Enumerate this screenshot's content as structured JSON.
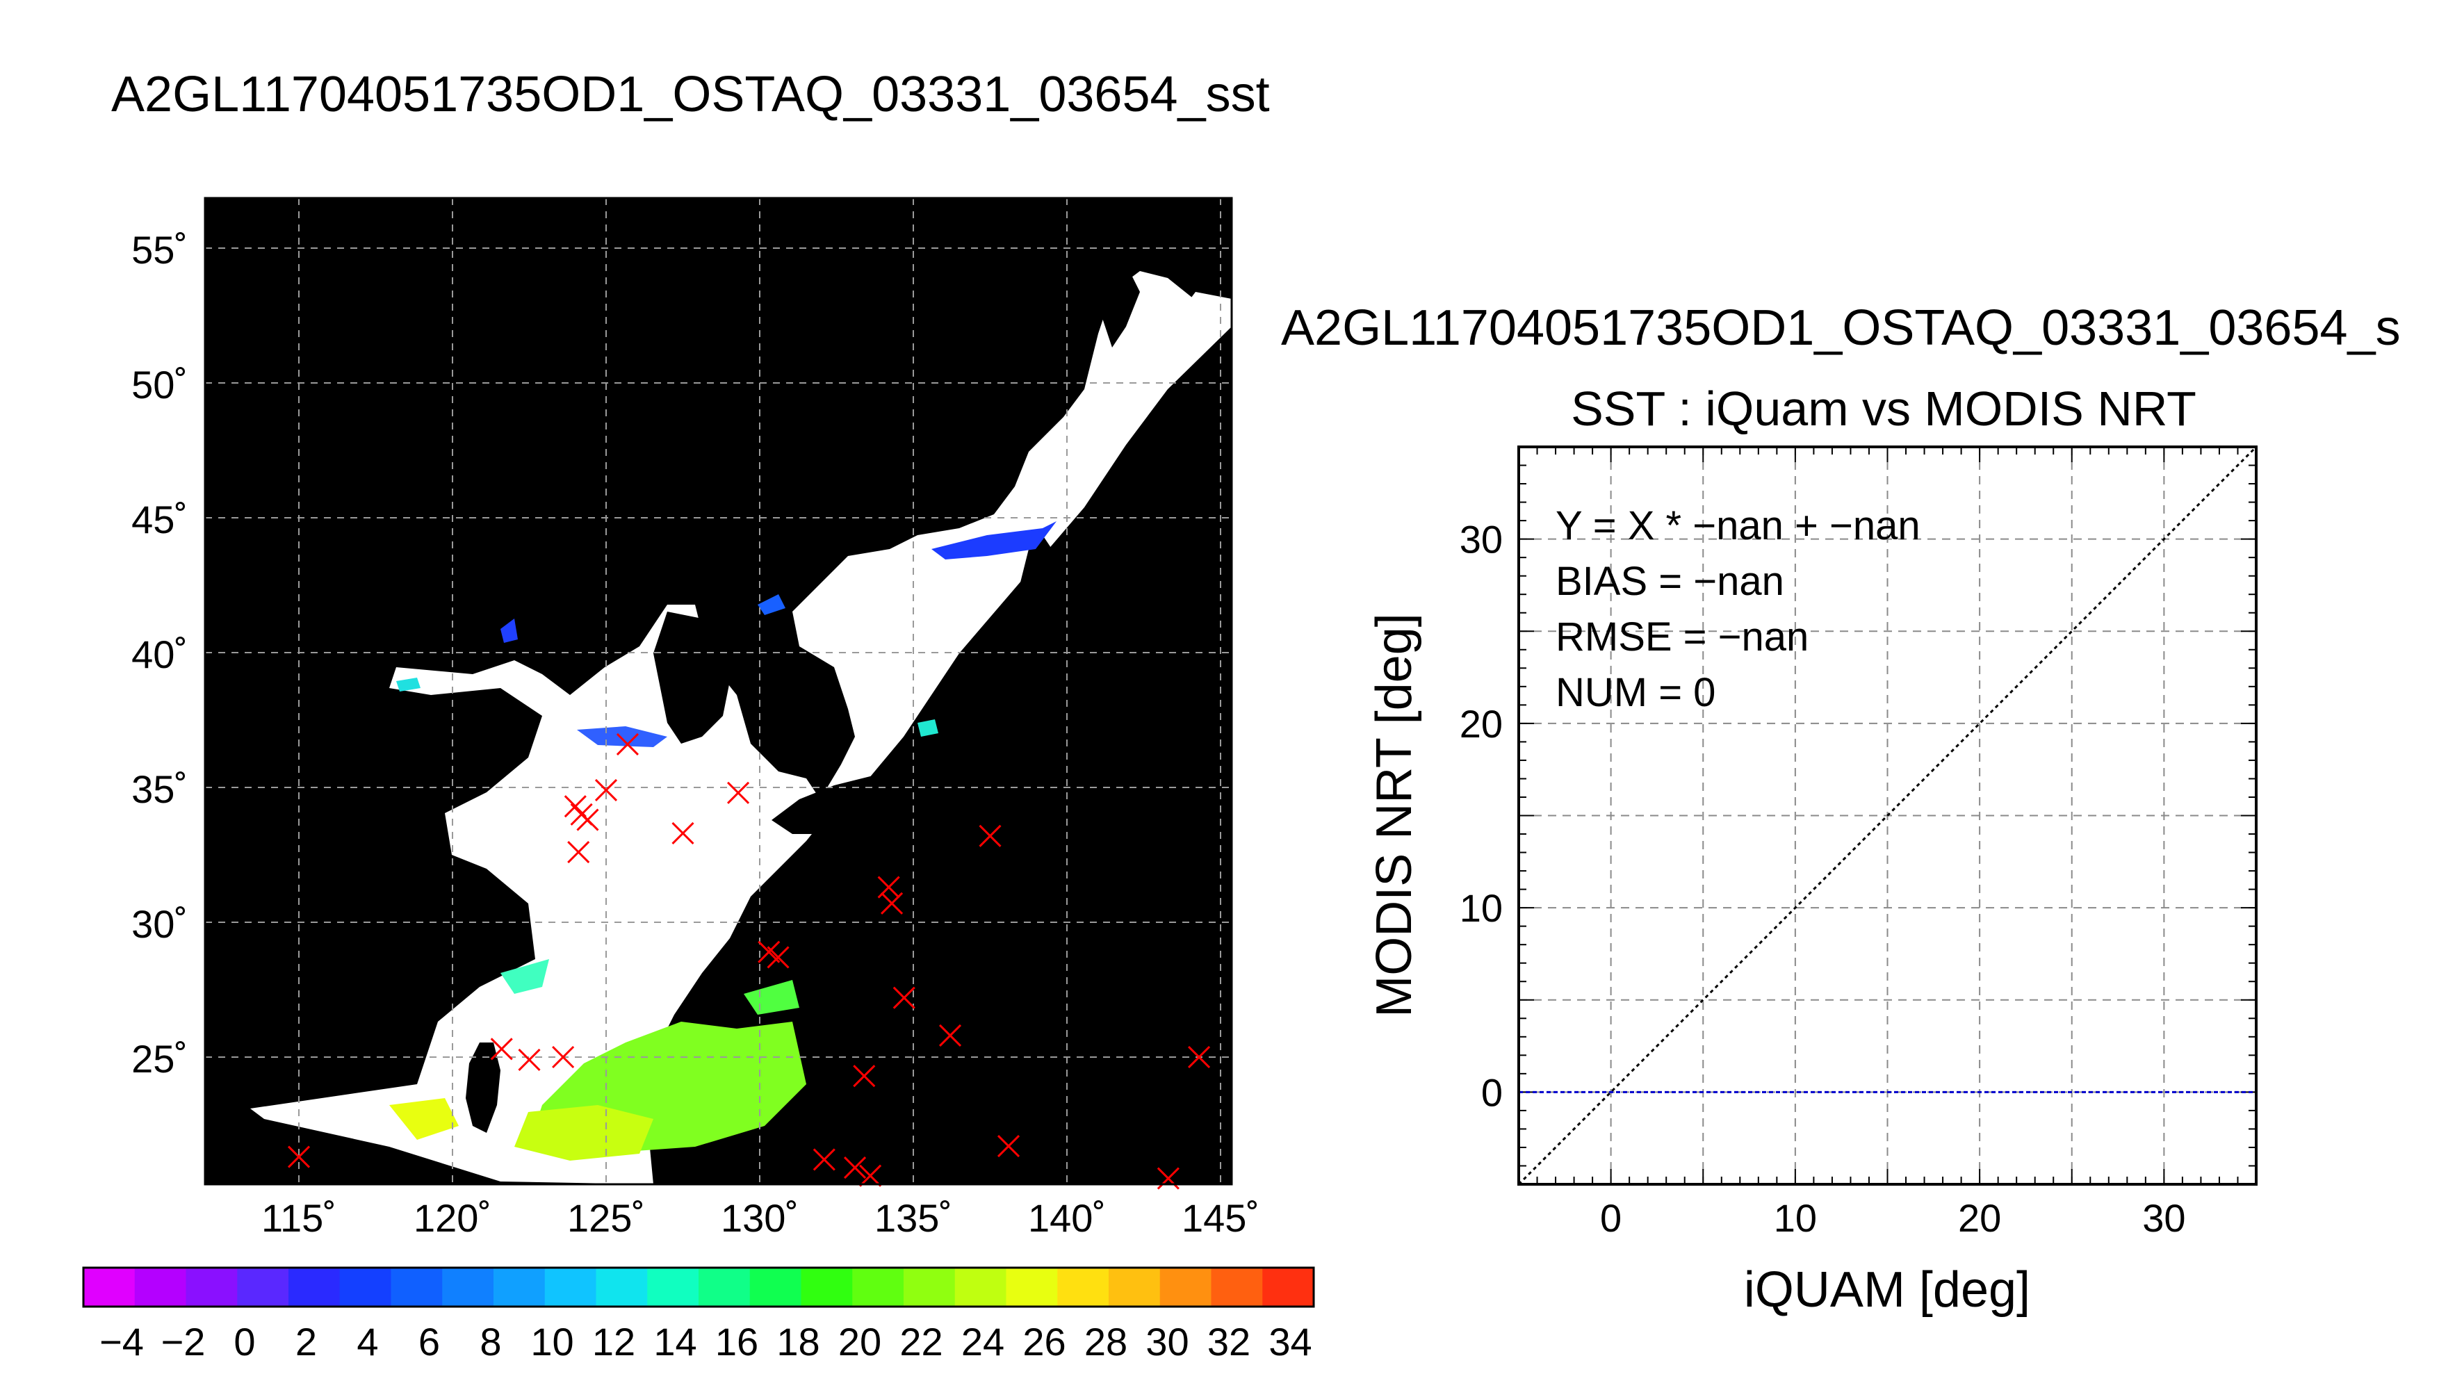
{
  "map_panel": {
    "title": "A2GL11704051735OD1_OSTAQ_03331_03654_sst",
    "lat_labels": [
      "55˚",
      "50˚",
      "45˚",
      "40˚",
      "35˚",
      "30˚",
      "25˚"
    ],
    "lon_labels": [
      "115˚",
      "120˚",
      "125˚",
      "130˚",
      "135˚",
      "140˚",
      "145˚"
    ],
    "colorbar_labels": [
      "−4",
      "−2",
      "0",
      "2",
      "4",
      "6",
      "8",
      "10",
      "12",
      "14",
      "16",
      "18",
      "20",
      "22",
      "24",
      "26",
      "28",
      "30",
      "32",
      "34"
    ],
    "colorbar_colors": [
      "#e000ff",
      "#b400ff",
      "#8a10ff",
      "#5a28ff",
      "#2a2aff",
      "#1440ff",
      "#1060ff",
      "#1080ff",
      "#10a0ff",
      "#10c4ff",
      "#10e4ee",
      "#10ffc0",
      "#10ff88",
      "#10ff50",
      "#30ff10",
      "#60ff10",
      "#90ff10",
      "#c0ff10",
      "#e8ff10",
      "#ffe010",
      "#ffc010",
      "#ff9010",
      "#ff6010",
      "#ff3010"
    ],
    "colors": {
      "land": "#000000",
      "no_data": "#ffffff",
      "match_marker": "#ff0000",
      "grid": "#9a9a9a"
    }
  },
  "chart_data": {
    "type": "scatter",
    "title": "A2GL11704051735OD1_OSTAQ_03331_03654_s",
    "subtitle": "SST : iQuam vs MODIS NRT",
    "xlabel": "iQUAM [deg]",
    "ylabel": "MODIS NRT [deg]",
    "xlim": [
      -5,
      35
    ],
    "ylim": [
      -5,
      35
    ],
    "xticks": [
      0,
      10,
      20,
      30
    ],
    "yticks": [
      0,
      10,
      20,
      30
    ],
    "grid": true,
    "stats": [
      "Y = X * −nan + −nan",
      "BIAS = −nan",
      "RMSE = −nan",
      "NUM = 0"
    ],
    "series": [],
    "reference_lines": [
      {
        "kind": "one_to_one",
        "style": "dotted",
        "color": "#000000"
      },
      {
        "kind": "horizontal",
        "y": 0,
        "style": "dashed",
        "color": "#0000cc"
      }
    ]
  }
}
